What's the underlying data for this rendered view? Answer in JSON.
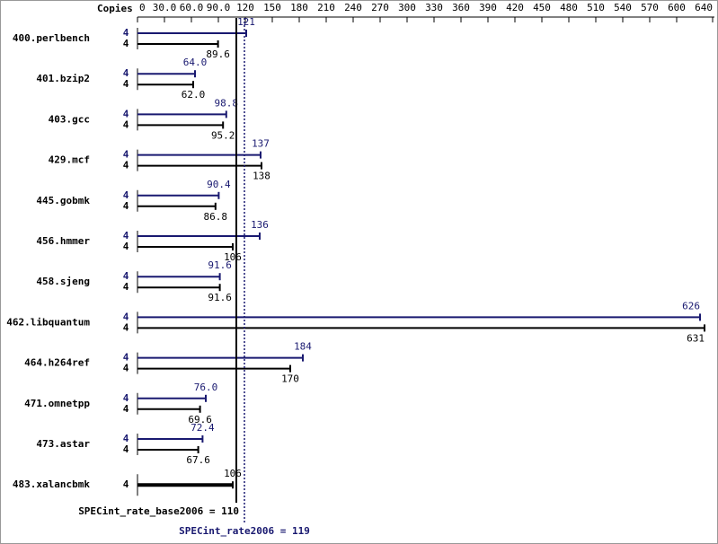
{
  "chart_data": {
    "type": "bar",
    "orientation": "horizontal",
    "copies_label": "Copies",
    "categories": [
      "400.perlbench",
      "401.bzip2",
      "403.gcc",
      "429.mcf",
      "445.gobmk",
      "456.hmmer",
      "458.sjeng",
      "462.libquantum",
      "464.h264ref",
      "471.omnetpp",
      "473.astar",
      "483.xalancbmk"
    ],
    "series": [
      {
        "name": "SPECint_rate2006",
        "color": "#191970",
        "copies": [
          4,
          4,
          4,
          4,
          4,
          4,
          4,
          4,
          4,
          4,
          4,
          null
        ],
        "values": [
          121,
          64.0,
          98.8,
          137,
          90.4,
          136,
          91.6,
          626,
          184,
          76.0,
          72.4,
          null
        ],
        "value_labels": [
          "121",
          "64.0",
          "98.8",
          "137",
          "90.4",
          "136",
          "91.6",
          "626",
          "184",
          "76.0",
          "72.4",
          null
        ]
      },
      {
        "name": "SPECint_rate_base2006",
        "color": "#000000",
        "copies": [
          4,
          4,
          4,
          4,
          4,
          4,
          4,
          4,
          4,
          4,
          4,
          4
        ],
        "values": [
          89.6,
          62.0,
          95.2,
          138,
          86.8,
          106,
          91.6,
          631,
          170,
          69.6,
          67.6,
          106
        ],
        "value_labels": [
          "89.6",
          "62.0",
          "95.2",
          "138",
          "86.8",
          "106",
          "91.6",
          "631",
          "170",
          "69.6",
          "67.6",
          "106"
        ]
      }
    ],
    "xlim": [
      0,
      640
    ],
    "xticks": [
      0,
      {
        "value": 30,
        "label": "30.0"
      },
      {
        "value": 60,
        "label": "60.0"
      },
      {
        "value": 90,
        "label": "90.0"
      },
      120,
      150,
      180,
      210,
      240,
      270,
      300,
      330,
      360,
      390,
      420,
      450,
      480,
      510,
      540,
      570,
      600,
      640
    ],
    "reference_lines": [
      {
        "label": "SPECint_rate_base2006 = 110",
        "value": 110,
        "color": "#000000",
        "style": "solid"
      },
      {
        "label": "SPECint_rate2006 = 119",
        "value": 119,
        "color": "#191970",
        "style": "dotted"
      }
    ]
  }
}
